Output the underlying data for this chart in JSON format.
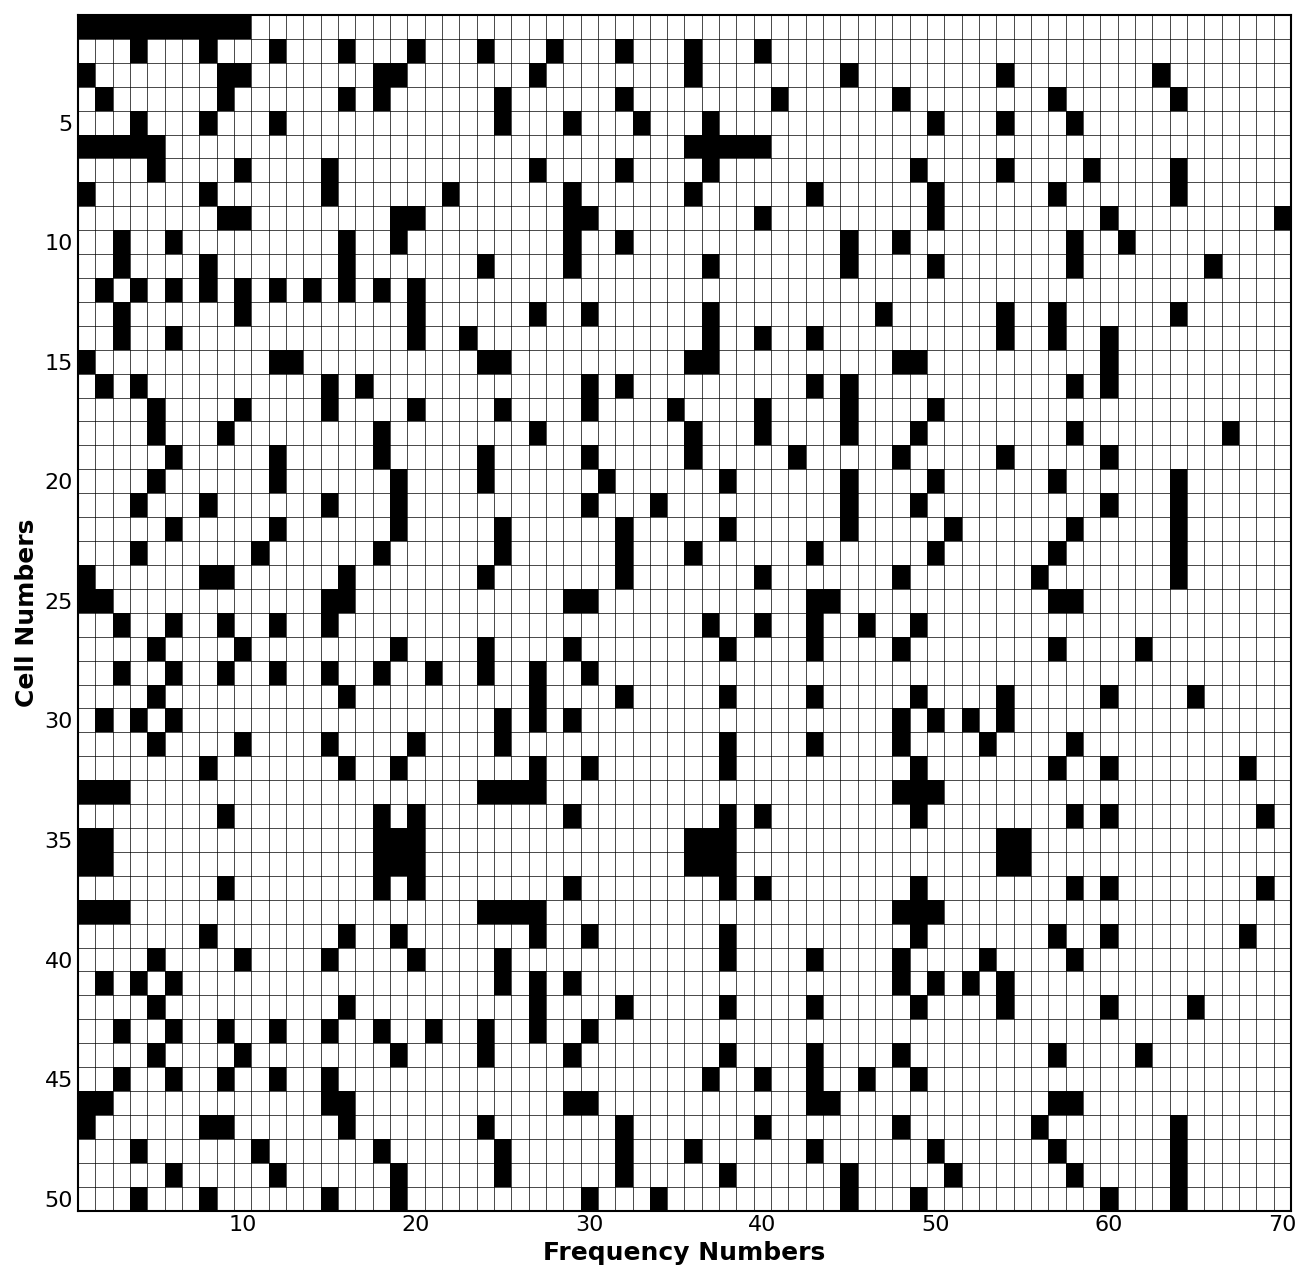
{
  "n_cells": 50,
  "n_freqs": 70,
  "xlabel": "Frequency Numbers",
  "ylabel": "Cell Numbers",
  "xticks": [
    10,
    20,
    30,
    40,
    50,
    60,
    70
  ],
  "yticks": [
    5,
    10,
    15,
    20,
    25,
    30,
    35,
    40,
    45,
    50
  ],
  "background_color": "#ffffff",
  "grid_color": "#000000",
  "cell_color": "#000000",
  "xlabel_fontsize": 18,
  "ylabel_fontsize": 18,
  "tick_fontsize": 16,
  "reuse_factor": 71,
  "n_freqs_per_cell": 2
}
